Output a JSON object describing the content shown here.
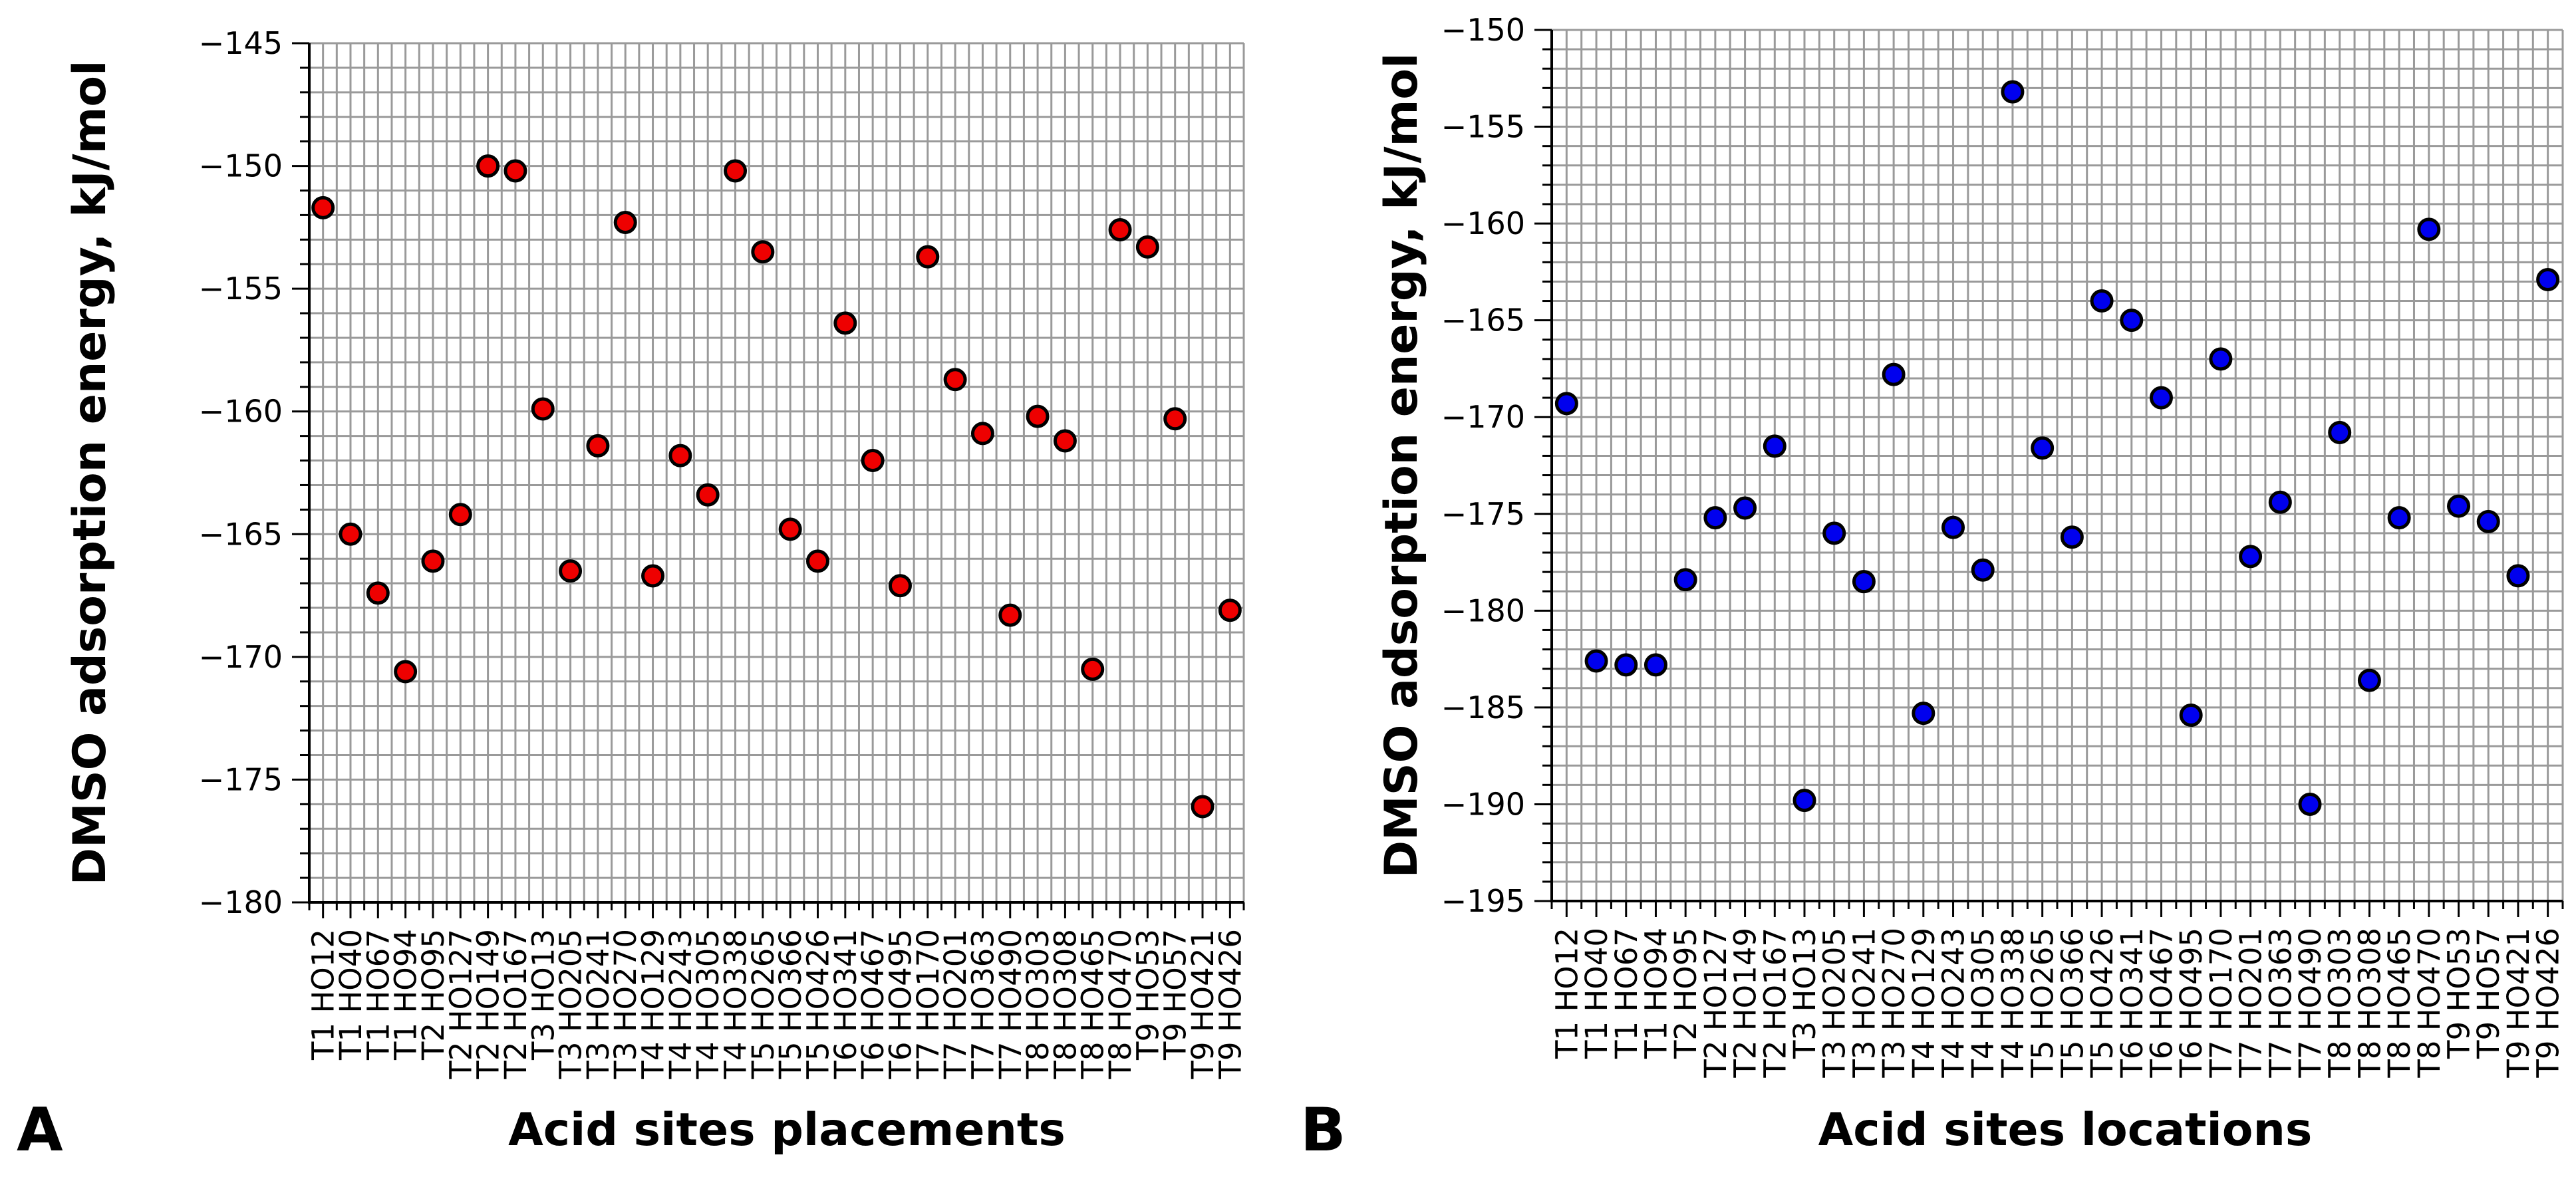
{
  "chart_data": [
    {
      "panel": "A",
      "type": "scatter",
      "xlabel": "Acid sites placements",
      "ylabel": "DMSO adsorption energy, kJ/mol",
      "ylim": [
        -180,
        -145
      ],
      "yticks": [
        -145,
        -150,
        -155,
        -160,
        -165,
        -170,
        -175,
        -180
      ],
      "grid": true,
      "marker_color": "#ee0000",
      "categories": [
        "T1 HO12",
        "T1 HO40",
        "T1 HO67",
        "T1 HO94",
        "T2 HO95",
        "T2 HO127",
        "T2 HO149",
        "T2 HO167",
        "T3 HO13",
        "T3 HO205",
        "T3 HO241",
        "T3 HO270",
        "T4 HO129",
        "T4 HO243",
        "T4 HO305",
        "T4 HO338",
        "T5 HO265",
        "T5 HO366",
        "T5 HO426",
        "T6 HO341",
        "T6 HO467",
        "T6 HO495",
        "T7 HO170",
        "T7 HO201",
        "T7 HO363",
        "T7 HO490",
        "T8 HO303",
        "T8 HO308",
        "T8 HO465",
        "T8 HO470",
        "T9 HO53",
        "T9 HO57",
        "T9 HO421",
        "T9 HO426"
      ],
      "values": [
        -151.7,
        -165.0,
        -167.4,
        -170.6,
        -166.1,
        -164.2,
        -150.0,
        -150.2,
        -159.9,
        -166.5,
        -161.4,
        -152.3,
        -166.7,
        -161.8,
        -163.4,
        -150.2,
        -153.5,
        -164.8,
        -166.1,
        -156.4,
        -162.0,
        -167.1,
        -153.7,
        -158.7,
        -160.9,
        -168.3,
        -160.2,
        -161.2,
        -170.5,
        -152.6,
        -153.3,
        -160.3,
        -176.1,
        -168.1
      ]
    },
    {
      "panel": "B",
      "type": "scatter",
      "xlabel": "Acid sites locations",
      "ylabel": "DMSO adsorption energy, kJ/mol",
      "ylim": [
        -195,
        -150
      ],
      "yticks": [
        -150,
        -155,
        -160,
        -165,
        -170,
        -175,
        -180,
        -185,
        -190,
        -195
      ],
      "grid": true,
      "marker_color": "#0000ee",
      "categories": [
        "T1 HO12",
        "T1 HO40",
        "T1 HO67",
        "T1 HO94",
        "T2 HO95",
        "T2 HO127",
        "T2 HO149",
        "T2 HO167",
        "T3 HO13",
        "T3 HO205",
        "T3 HO241",
        "T3 HO270",
        "T4 HO129",
        "T4 HO243",
        "T4 HO305",
        "T4 HO338",
        "T5 HO265",
        "T5 HO366",
        "T5 HO426",
        "T6 HO341",
        "T6 HO467",
        "T6 HO495",
        "T7 HO170",
        "T7 HO201",
        "T7 HO363",
        "T7 HO490",
        "T8 HO303",
        "T8 HO308",
        "T8 HO465",
        "T8 HO470",
        "T9 HO53",
        "T9 HO57",
        "T9 HO421",
        "T9 HO426"
      ],
      "values": [
        -169.3,
        -182.6,
        -182.8,
        -182.8,
        -178.4,
        -175.2,
        -174.7,
        -171.5,
        -189.8,
        -176.0,
        -178.5,
        -167.8,
        -185.3,
        -175.7,
        -177.9,
        -153.2,
        -171.6,
        -176.2,
        -164.0,
        -165.0,
        -169.0,
        -185.4,
        -167.0,
        -177.2,
        -174.4,
        -190.0,
        -170.8,
        -183.6,
        -175.2,
        -160.3,
        -174.6,
        -175.4,
        -178.2,
        -162.9
      ]
    }
  ]
}
